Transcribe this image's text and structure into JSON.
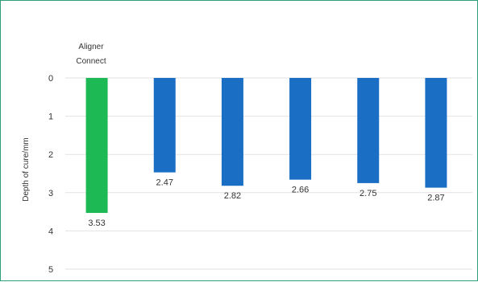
{
  "chart_data": {
    "type": "bar",
    "orientation": "vertical",
    "y_axis_inverted": true,
    "categories": [
      "Aligner Connect",
      "",
      "",
      "",
      "",
      ""
    ],
    "values": [
      3.53,
      2.47,
      2.82,
      2.66,
      2.75,
      2.87
    ],
    "data_labels": [
      "3.53",
      "2.47",
      "2.82",
      "2.66",
      "2.75",
      "2.87"
    ],
    "bar_colors": [
      "#1db954",
      "#1a6fc4",
      "#1a6fc4",
      "#1a6fc4",
      "#1a6fc4",
      "#1a6fc4"
    ],
    "annotation_lines": [
      "Aligner",
      "Connect"
    ],
    "ylabel": "Depth of cure/mm",
    "ylim": [
      0,
      5
    ],
    "yticks": [
      "0",
      "1",
      "2",
      "3",
      "4",
      "5"
    ],
    "grid": true,
    "legend": "none"
  }
}
